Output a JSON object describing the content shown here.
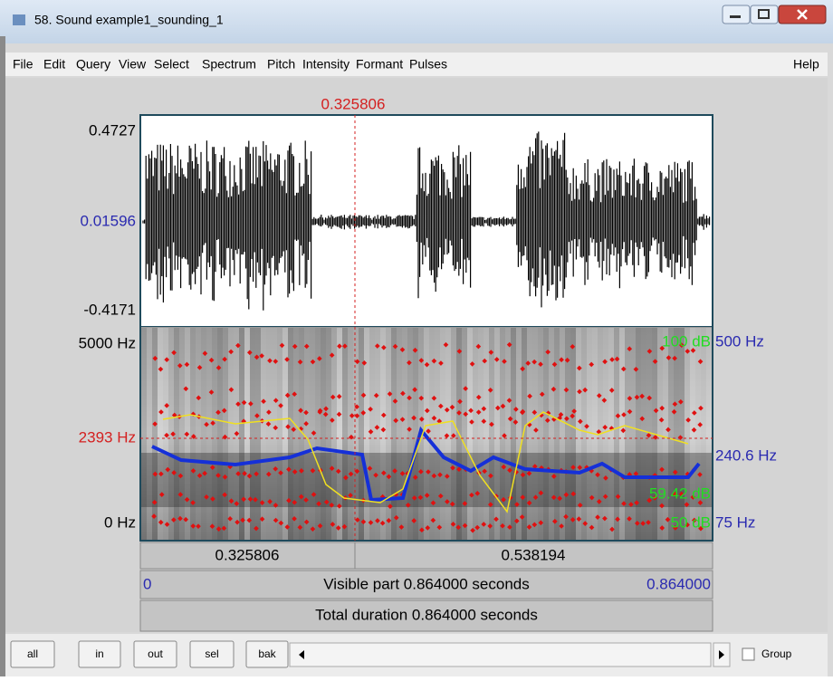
{
  "window": {
    "title": "58. Sound example1_sounding_1"
  },
  "menu": {
    "items": [
      "File",
      "Edit",
      "Query",
      "View",
      "Select",
      "Spectrum",
      "Pitch",
      "Intensity",
      "Formant",
      "Pulses"
    ],
    "help": "Help"
  },
  "editor": {
    "cursor_time": "0.325806",
    "waveform_axis": {
      "top": "0.4727",
      "middle": "0.01596",
      "bottom": "-0.4171"
    },
    "spectrogram_axis": {
      "top": "5000 Hz",
      "cursor": "2393 Hz",
      "bottom": "0 Hz"
    },
    "right_labels": {
      "intensity_top": "100 dB",
      "pitch_top": "500 Hz",
      "pitch_value": "240.6 Hz",
      "intensity_value": "59.42 dB",
      "intensity_bottom": "50 dB",
      "pitch_bottom": "75 Hz"
    },
    "time_bars": {
      "left_segment": "0.325806",
      "right_segment": "0.538194",
      "visible_start": "0",
      "visible_label": "Visible part 0.864000 seconds",
      "visible_end": "0.864000",
      "total_label": "Total duration 0.864000 seconds"
    }
  },
  "buttons": [
    "all",
    "in",
    "out",
    "sel",
    "bak"
  ],
  "group": "Group"
}
